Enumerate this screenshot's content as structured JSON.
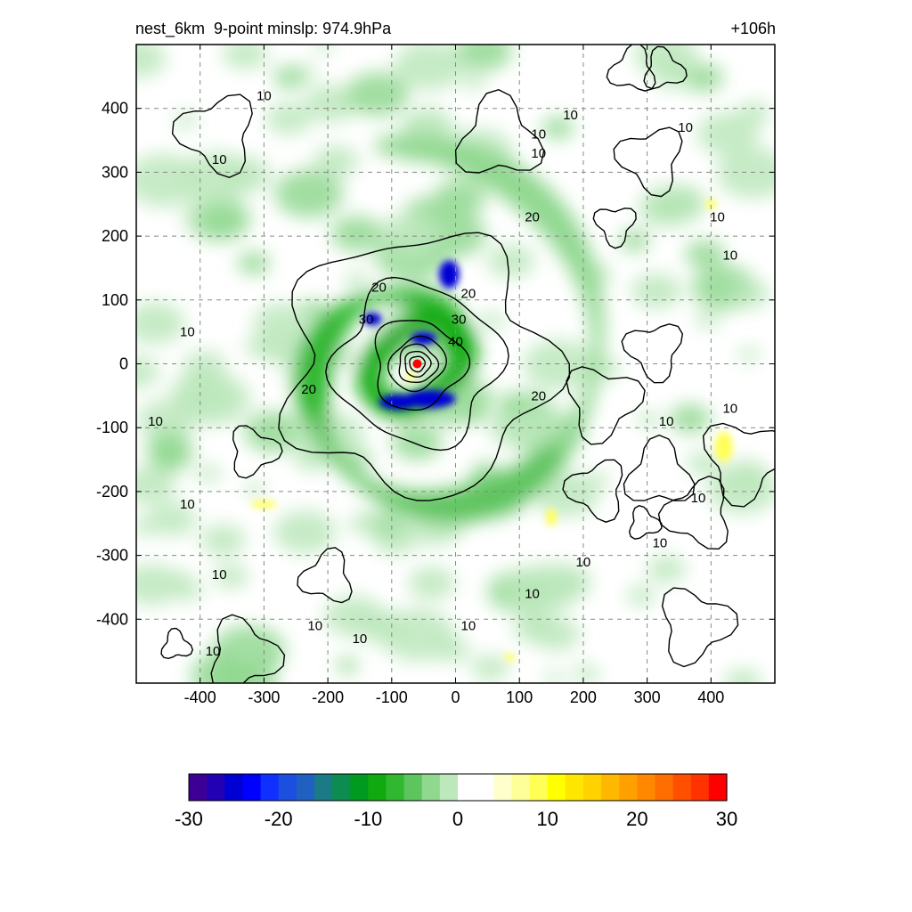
{
  "chart_data": {
    "type": "heatmap",
    "title": "nest_6km  9-point minslp: 974.9hPa",
    "time_label": "+106h",
    "xlim": [
      -500,
      500
    ],
    "ylim": [
      -500,
      500
    ],
    "x_ticks": [
      -400,
      -300,
      -200,
      -100,
      0,
      100,
      200,
      300,
      400
    ],
    "y_ticks": [
      -400,
      -300,
      -200,
      -100,
      0,
      100,
      200,
      300,
      400
    ],
    "grid": true,
    "grid_style": "dashed",
    "center_marker": {
      "x": -60,
      "y": 0,
      "color": "#ff0000"
    },
    "colorbar": {
      "min": -30,
      "max": 30,
      "step": 2,
      "ticks": [
        -30,
        -20,
        -10,
        0,
        10,
        20,
        30
      ],
      "colors": [
        "#3d0096",
        "#2200b4",
        "#0000d2",
        "#0000ff",
        "#1030ff",
        "#1c4ee0",
        "#2060c0",
        "#1a7a86",
        "#0c8c50",
        "#009a20",
        "#10aa10",
        "#30b830",
        "#5ec45e",
        "#90d890",
        "#bce8bc",
        "#ffffff",
        "#ffffff",
        "#ffffcc",
        "#ffff99",
        "#ffff55",
        "#ffff00",
        "#ffe600",
        "#ffd200",
        "#ffb800",
        "#ffa000",
        "#ff8800",
        "#ff6e00",
        "#ff5000",
        "#ff3200",
        "#ff0000"
      ]
    },
    "contour_levels": [
      10,
      20,
      30,
      40
    ],
    "contour_labels": [
      {
        "text": "10",
        "x": -300,
        "y": 420
      },
      {
        "text": "10",
        "x": -370,
        "y": 320
      },
      {
        "text": "10",
        "x": -420,
        "y": 50
      },
      {
        "text": "10",
        "x": -470,
        "y": -90
      },
      {
        "text": "10",
        "x": -420,
        "y": -220
      },
      {
        "text": "10",
        "x": -370,
        "y": -330
      },
      {
        "text": "10",
        "x": -220,
        "y": -410
      },
      {
        "text": "10",
        "x": -380,
        "y": -450
      },
      {
        "text": "10",
        "x": -150,
        "y": -430
      },
      {
        "text": "10",
        "x": 20,
        "y": -410
      },
      {
        "text": "10",
        "x": 120,
        "y": -360
      },
      {
        "text": "10",
        "x": 200,
        "y": -310
      },
      {
        "text": "10",
        "x": 320,
        "y": -280
      },
      {
        "text": "10",
        "x": 380,
        "y": -210
      },
      {
        "text": "10",
        "x": 330,
        "y": -90
      },
      {
        "text": "10",
        "x": 430,
        "y": -70
      },
      {
        "text": "10",
        "x": 410,
        "y": 230
      },
      {
        "text": "10",
        "x": 430,
        "y": 170
      },
      {
        "text": "10",
        "x": 360,
        "y": 370
      },
      {
        "text": "10",
        "x": 180,
        "y": 390
      },
      {
        "text": "10",
        "x": 130,
        "y": 360
      },
      {
        "text": "10",
        "x": 130,
        "y": 330
      },
      {
        "text": "20",
        "x": 120,
        "y": 230
      },
      {
        "text": "20",
        "x": -120,
        "y": 120
      },
      {
        "text": "20",
        "x": -230,
        "y": -40
      },
      {
        "text": "20",
        "x": 130,
        "y": -50
      },
      {
        "text": "20",
        "x": 20,
        "y": 110
      },
      {
        "text": "30",
        "x": -140,
        "y": 70
      },
      {
        "text": "30",
        "x": 5,
        "y": 70
      },
      {
        "text": "40",
        "x": 0,
        "y": 35
      }
    ]
  }
}
